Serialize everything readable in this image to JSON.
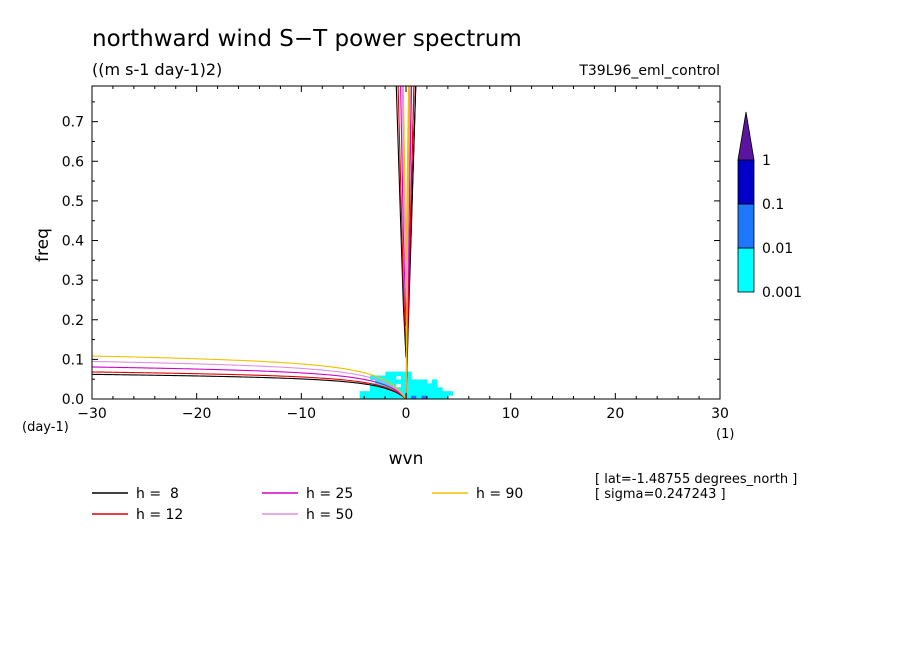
{
  "title": "northward wind S−T power spectrum",
  "subtitle": "((m s-1 day-1)2)",
  "experiment": "T39L96_eml_control",
  "info": [
    "[ lat=-1.48755 degrees_north ]",
    "[ sigma=0.247243 ]"
  ],
  "chart_data": {
    "type": "heatmap",
    "xlabel": "wvn",
    "ylabel": "freq",
    "x_unit": "(1)",
    "y_unit": "(day-1)",
    "xlim": [
      -30,
      30
    ],
    "ylim": [
      0,
      0.79
    ],
    "x_ticks": [
      -30,
      -20,
      -10,
      0,
      10,
      20,
      30
    ],
    "x_tick_labels": [
      "−30",
      "−20",
      "−10",
      "0",
      "10",
      "20",
      "30"
    ],
    "y_ticks": [
      0,
      0.1,
      0.2,
      0.3,
      0.4,
      0.5,
      0.6,
      0.7
    ],
    "y_tick_labels": [
      "0.0",
      "0.1",
      "0.2",
      "0.3",
      "0.4",
      "0.5",
      "0.6",
      "0.7"
    ],
    "colorbar": {
      "levels": [
        "0.001",
        "0.01",
        "0.1",
        "1"
      ],
      "colors": [
        "#00ffff",
        "#1e78ff",
        "#0000c8",
        "#5a14a0"
      ]
    },
    "dispersion_curves": [
      {
        "label": "h =  8",
        "h": 8,
        "color": "#000000"
      },
      {
        "label": "h = 12",
        "h": 12,
        "color": "#e00000"
      },
      {
        "label": "h = 25",
        "h": 25,
        "color": "#d000c8"
      },
      {
        "label": "h = 50",
        "h": 50,
        "color": "#e090e0"
      },
      {
        "label": "h = 90",
        "h": 90,
        "color": "#f0c000"
      }
    ]
  }
}
